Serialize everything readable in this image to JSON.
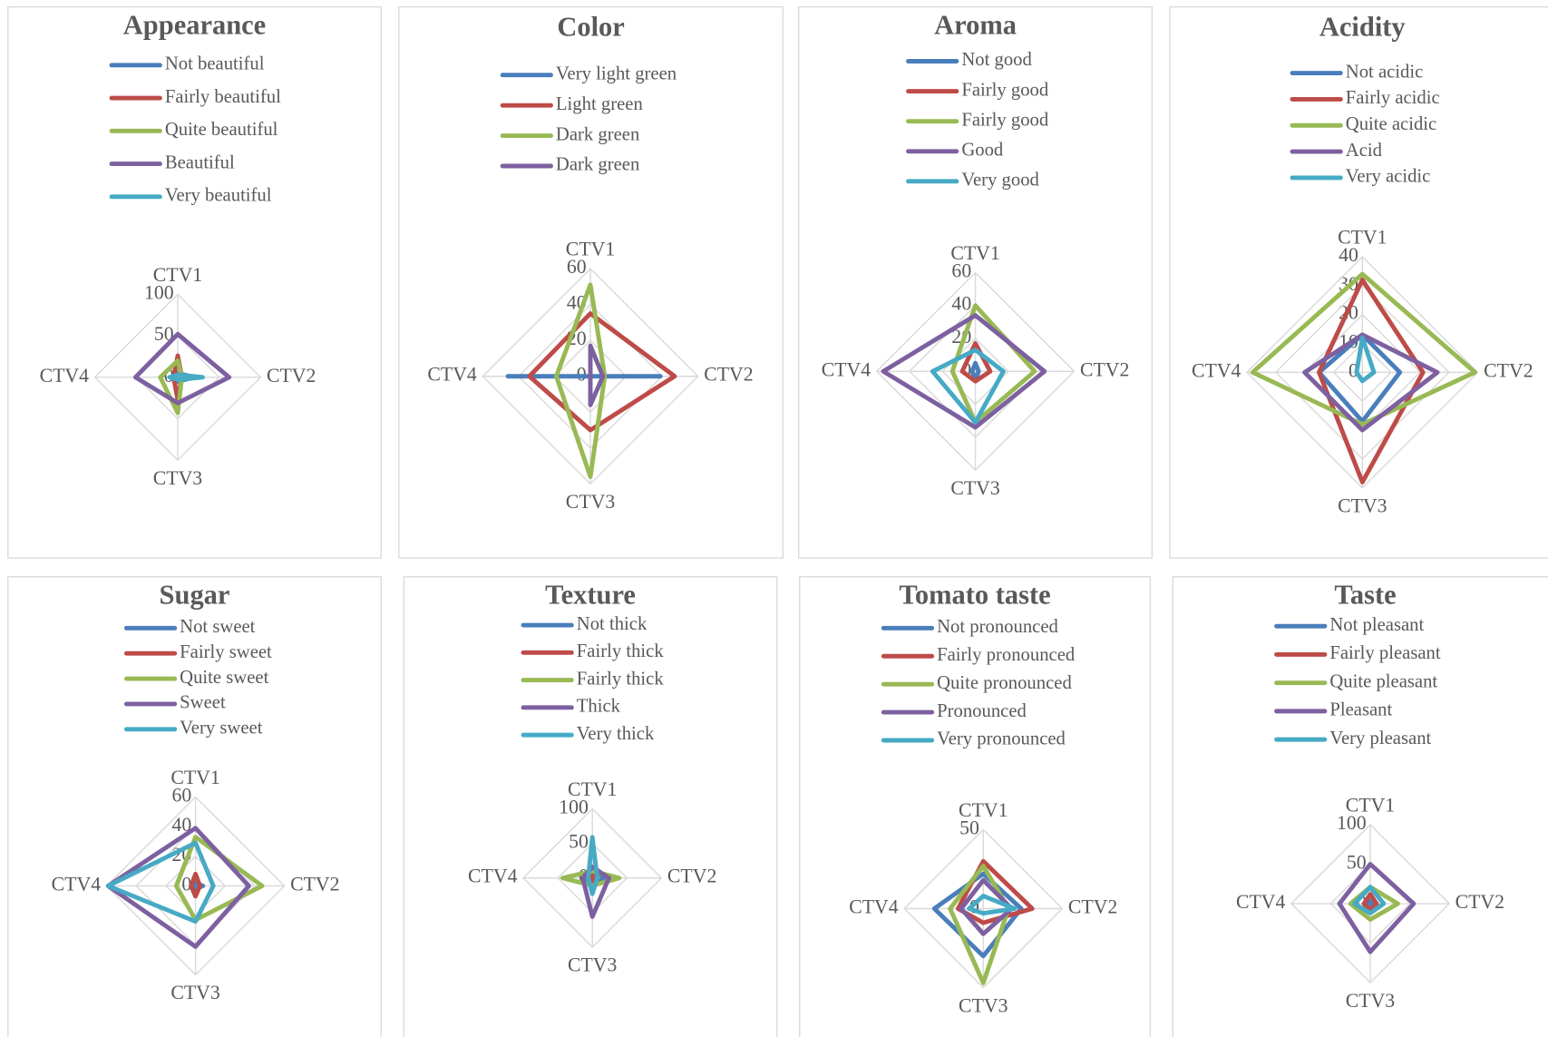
{
  "chart_data": [
    {
      "type": "radar",
      "title": "Appearance",
      "categories": [
        "CTV1",
        "CTV2",
        "CTV3",
        "CTV4"
      ],
      "ylim": [
        0,
        100
      ],
      "yticks": [
        0,
        50,
        100
      ],
      "grid": true,
      "series": [
        {
          "name": "Not beautiful",
          "color": "#4a7ebb",
          "values": [
            5,
            20,
            5,
            3
          ]
        },
        {
          "name": "Fairly beautiful",
          "color": "#be4b48",
          "values": [
            26,
            5,
            27,
            5
          ]
        },
        {
          "name": "Quite beautiful",
          "color": "#98b954",
          "values": [
            20,
            5,
            43,
            21
          ]
        },
        {
          "name": "Beautiful",
          "color": "#7d60a0",
          "values": [
            52,
            62,
            31,
            51
          ]
        },
        {
          "name": "Very beautiful",
          "color": "#46aac5",
          "values": [
            3,
            30,
            3,
            10
          ]
        }
      ]
    },
    {
      "type": "radar",
      "title": "Color",
      "categories": [
        "CTV1",
        "CTV2",
        "CTV3",
        "CTV4"
      ],
      "ylim": [
        0,
        60
      ],
      "yticks": [
        0,
        20,
        40,
        60
      ],
      "grid": true,
      "series": [
        {
          "name": "Very light green",
          "color": "#4a7ebb",
          "values": [
            0,
            39,
            0,
            46
          ]
        },
        {
          "name": "Light green",
          "color": "#be4b48",
          "values": [
            35,
            47,
            30,
            34
          ]
        },
        {
          "name": "Dark green",
          "color": "#98b954",
          "values": [
            51,
            8,
            56,
            19
          ]
        },
        {
          "name": "Dark green",
          "color": "#7d60a0",
          "values": [
            17,
            7,
            16,
            0
          ]
        }
      ]
    },
    {
      "type": "radar",
      "title": "Aroma",
      "categories": [
        "CTV1",
        "CTV2",
        "CTV3",
        "CTV4"
      ],
      "ylim": [
        0,
        60
      ],
      "yticks": [
        0,
        20,
        40,
        60
      ],
      "grid": true,
      "series": [
        {
          "name": "Not good",
          "color": "#4a7ebb",
          "values": [
            5,
            2,
            5,
            2
          ]
        },
        {
          "name": "Fairly good",
          "color": "#be4b48",
          "values": [
            17,
            9,
            6,
            8
          ]
        },
        {
          "name": "Fairly good",
          "color": "#98b954",
          "values": [
            40,
            36,
            31,
            14
          ]
        },
        {
          "name": "Good",
          "color": "#7d60a0",
          "values": [
            34,
            42,
            34,
            56
          ]
        },
        {
          "name": "Very good",
          "color": "#46aac5",
          "values": [
            13,
            17,
            31,
            26
          ]
        }
      ]
    },
    {
      "type": "radar",
      "title": "Acidity",
      "categories": [
        "CTV1",
        "CTV2",
        "CTV3",
        "CTV4"
      ],
      "ylim": [
        0,
        40
      ],
      "yticks": [
        0,
        10,
        20,
        30,
        40
      ],
      "grid": true,
      "series": [
        {
          "name": "Not acidic",
          "color": "#4a7ebb",
          "values": [
            13,
            13,
            17,
            15
          ]
        },
        {
          "name": "Fairly acidic",
          "color": "#be4b48",
          "values": [
            32,
            21,
            38,
            15
          ]
        },
        {
          "name": "Quite acidic",
          "color": "#98b954",
          "values": [
            34,
            39,
            18,
            38
          ]
        },
        {
          "name": "Acid",
          "color": "#7d60a0",
          "values": [
            13,
            26,
            20,
            20
          ]
        },
        {
          "name": "Very acidic",
          "color": "#46aac5",
          "values": [
            12,
            4,
            3,
            2
          ]
        }
      ]
    },
    {
      "type": "radar",
      "title": "Sugar",
      "categories": [
        "CTV1",
        "CTV2",
        "CTV3",
        "CTV4"
      ],
      "ylim": [
        0,
        60
      ],
      "yticks": [
        0,
        20,
        40,
        60
      ],
      "grid": true,
      "series": [
        {
          "name": "Not sweet",
          "color": "#4a7ebb",
          "values": [
            2,
            5,
            2,
            2
          ]
        },
        {
          "name": "Fairly sweet",
          "color": "#be4b48",
          "values": [
            8,
            3,
            7,
            3
          ]
        },
        {
          "name": "Quite sweet",
          "color": "#98b954",
          "values": [
            33,
            45,
            23,
            13
          ]
        },
        {
          "name": "Sweet",
          "color": "#7d60a0",
          "values": [
            39,
            36,
            41,
            59
          ]
        },
        {
          "name": "Very sweet",
          "color": "#46aac5",
          "values": [
            29,
            12,
            24,
            59
          ]
        }
      ]
    },
    {
      "type": "radar",
      "title": "Texture",
      "categories": [
        "CTV1",
        "CTV2",
        "CTV3",
        "CTV4"
      ],
      "ylim": [
        0,
        100
      ],
      "yticks": [
        0,
        50,
        100
      ],
      "grid": true,
      "series": [
        {
          "name": "Not thick",
          "color": "#4a7ebb",
          "values": [
            13,
            17,
            11,
            11
          ]
        },
        {
          "name": "Fairly thick",
          "color": "#be4b48",
          "values": [
            5,
            5,
            5,
            5
          ]
        },
        {
          "name": "Fairly thick",
          "color": "#98b954",
          "values": [
            10,
            39,
            11,
            43
          ]
        },
        {
          "name": "Thick",
          "color": "#7d60a0",
          "values": [
            16,
            24,
            56,
            14
          ]
        },
        {
          "name": "Very thick",
          "color": "#46aac5",
          "values": [
            59,
            7,
            23,
            6
          ]
        }
      ]
    },
    {
      "type": "radar",
      "title": "Tomato taste",
      "categories": [
        "CTV1",
        "CTV2",
        "CTV3",
        "CTV4"
      ],
      "ylim": [
        0,
        50
      ],
      "yticks": [
        0,
        50
      ],
      "grid": true,
      "series": [
        {
          "name": "Not pronounced",
          "color": "#4a7ebb",
          "values": [
            22,
            24,
            30,
            31
          ]
        },
        {
          "name": "Fairly pronounced",
          "color": "#be4b48",
          "values": [
            30,
            31,
            9,
            16
          ]
        },
        {
          "name": "Quite pronounced",
          "color": "#98b954",
          "values": [
            27,
            16,
            47,
            21
          ]
        },
        {
          "name": "Pronounced",
          "color": "#7d60a0",
          "values": [
            18,
            18,
            16,
            14
          ]
        },
        {
          "name": "Very pronounced",
          "color": "#46aac5",
          "values": [
            8,
            20,
            3,
            9
          ]
        }
      ]
    },
    {
      "type": "radar",
      "title": "Taste",
      "categories": [
        "CTV1",
        "CTV2",
        "CTV3",
        "CTV4"
      ],
      "ylim": [
        0,
        100
      ],
      "yticks": [
        0,
        50,
        100
      ],
      "grid": true,
      "series": [
        {
          "name": "Not pleasant",
          "color": "#4a7ebb",
          "values": [
            3,
            3,
            3,
            3
          ]
        },
        {
          "name": "Fairly pleasant",
          "color": "#be4b48",
          "values": [
            12,
            8,
            8,
            8
          ]
        },
        {
          "name": "Quite pleasant",
          "color": "#98b954",
          "values": [
            21,
            35,
            20,
            25
          ]
        },
        {
          "name": "Pleasant",
          "color": "#7d60a0",
          "values": [
            50,
            55,
            61,
            39
          ]
        },
        {
          "name": "Very pleasant",
          "color": "#46aac5",
          "values": [
            21,
            17,
            12,
            20
          ]
        }
      ]
    }
  ]
}
